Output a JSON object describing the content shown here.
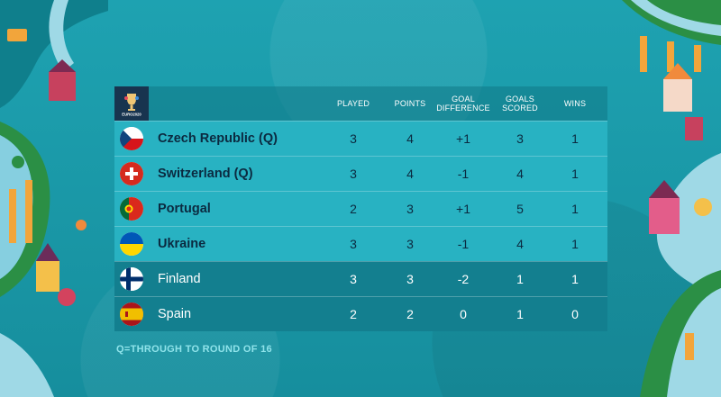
{
  "logo_text": "EURO2020",
  "columns": {
    "played": "PLAYED",
    "points": "POINTS",
    "goal_diff": "GOAL DIFFERENCE",
    "goals_scored": "GOALS SCORED",
    "wins": "WINS"
  },
  "rows": [
    {
      "team": "Czech Republic (Q)",
      "played": "3",
      "points": "4",
      "goal_diff": "+1",
      "goals_scored": "3",
      "wins": "1",
      "flag": "czech-republic-flag-icon"
    },
    {
      "team": "Switzerland (Q)",
      "played": "3",
      "points": "4",
      "goal_diff": "-1",
      "goals_scored": "4",
      "wins": "1",
      "flag": "switzerland-flag-icon"
    },
    {
      "team": "Portugal",
      "played": "2",
      "points": "3",
      "goal_diff": "+1",
      "goals_scored": "5",
      "wins": "1",
      "flag": "portugal-flag-icon"
    },
    {
      "team": "Ukraine",
      "played": "3",
      "points": "3",
      "goal_diff": "-1",
      "goals_scored": "4",
      "wins": "1",
      "flag": "ukraine-flag-icon"
    },
    {
      "team": "Finland",
      "played": "3",
      "points": "3",
      "goal_diff": "-2",
      "goals_scored": "1",
      "wins": "1",
      "flag": "finland-flag-icon"
    },
    {
      "team": "Spain",
      "played": "2",
      "points": "2",
      "goal_diff": "0",
      "goals_scored": "1",
      "wins": "0",
      "flag": "spain-flag-icon"
    }
  ],
  "footnote": "Q=THROUGH TO ROUND OF 16",
  "colors": {
    "background": "#1b97a6",
    "qualified_row": "#28b2c2",
    "other_row": "#137f8f",
    "logo_tile": "#18344f",
    "dark_text": "#0b2a40"
  }
}
